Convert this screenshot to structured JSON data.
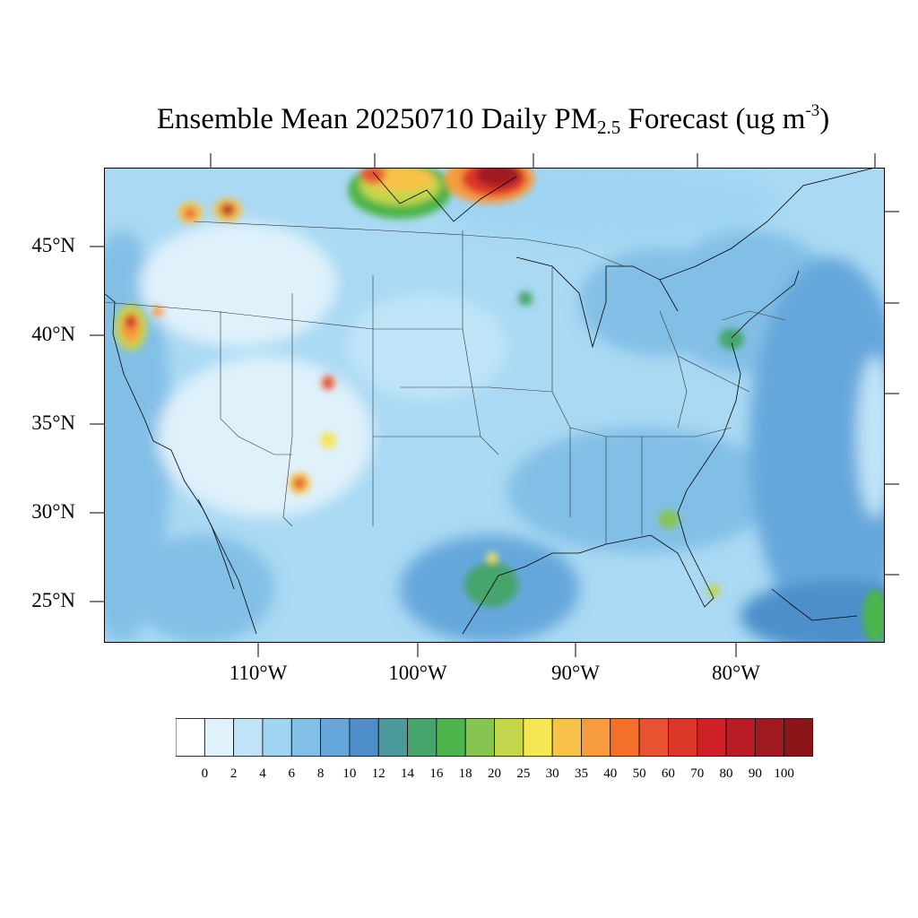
{
  "title": {
    "prefix": "Ensemble Mean 20250710 Daily PM",
    "subscript": "2.5",
    "middle": " Forecast (ug m",
    "superscript": "-3",
    "suffix": ")"
  },
  "map": {
    "lat_labels": [
      "45°N",
      "40°N",
      "35°N",
      "30°N",
      "25°N"
    ],
    "lon_labels": [
      "110°W",
      "100°W",
      "90°W",
      "80°W"
    ],
    "background_color": "#a9d9f3"
  },
  "colorbar": {
    "labels": [
      "0",
      "2",
      "4",
      "6",
      "8",
      "10",
      "12",
      "14",
      "16",
      "18",
      "20",
      "25",
      "30",
      "35",
      "40",
      "50",
      "60",
      "70",
      "80",
      "90",
      "100"
    ],
    "colors": [
      "#ffffff",
      "#dff1fb",
      "#bfe4f7",
      "#9fd5f3",
      "#82bfe6",
      "#66a7db",
      "#4e8fcb",
      "#4a9a9b",
      "#45a56d",
      "#4cb44a",
      "#86c54f",
      "#c3d64e",
      "#f6e653",
      "#f8c24a",
      "#f79b3f",
      "#f36f2c",
      "#e85230",
      "#dc3829",
      "#cf2227",
      "#b91c24",
      "#a01b20",
      "#8c1519"
    ]
  }
}
